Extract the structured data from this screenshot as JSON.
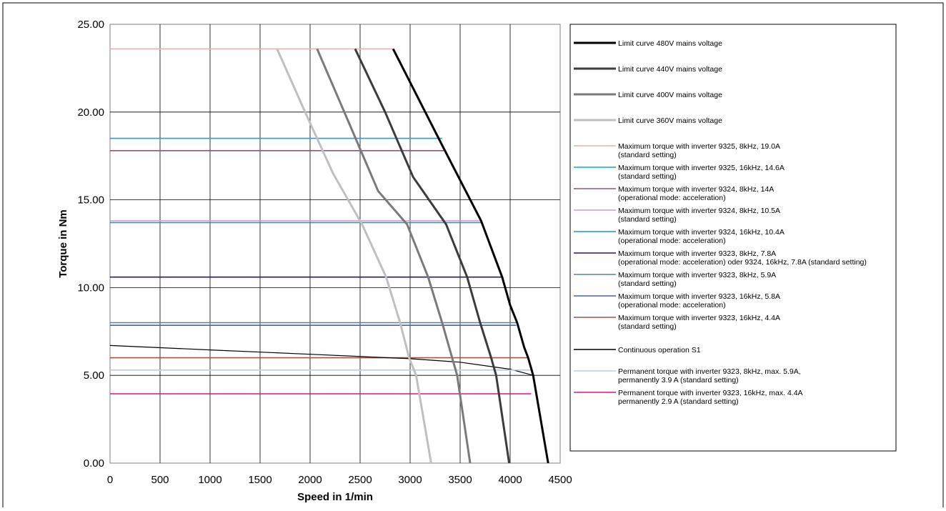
{
  "chart_data": {
    "type": "line",
    "xlabel": "Speed in 1/min",
    "ylabel": "Torque in Nm",
    "xlim": [
      0,
      4500
    ],
    "ylim": [
      0,
      25
    ],
    "x_ticks": [
      "0",
      "500",
      "1000",
      "1500",
      "2000",
      "2500",
      "3000",
      "3500",
      "4000",
      "4500"
    ],
    "y_ticks": [
      "0.00",
      "5.00",
      "10.00",
      "15.00",
      "20.00",
      "25.00"
    ],
    "grid": true,
    "legend_position": "right",
    "series": [
      {
        "name": "Limit curve  480V mains voltage",
        "lines": [
          "Limit curve  480V mains voltage"
        ],
        "color": "#000000",
        "width": 3,
        "points": [
          [
            2830,
            23.6
          ],
          [
            3330,
            18.0
          ],
          [
            3710,
            13.8
          ],
          [
            3920,
            10.6
          ],
          [
            4000,
            9.0
          ],
          [
            4070,
            8.0
          ],
          [
            4140,
            6.6
          ],
          [
            4180,
            6.0
          ],
          [
            4230,
            5.0
          ],
          [
            4380,
            0.0
          ]
        ]
      },
      {
        "name": "Limit curve  440V mains voltage",
        "lines": [
          "Limit curve  440V mains voltage"
        ],
        "color": "#3c3c3c",
        "width": 3,
        "points": [
          [
            2450,
            23.6
          ],
          [
            2750,
            20.0
          ],
          [
            3030,
            16.3
          ],
          [
            3360,
            13.6
          ],
          [
            3570,
            10.6
          ],
          [
            3700,
            8.0
          ],
          [
            3810,
            6.0
          ],
          [
            3860,
            5.0
          ],
          [
            3990,
            0.0
          ]
        ]
      },
      {
        "name": "Limit curve 400V mains voltage",
        "lines": [
          "Limit curve 400V mains voltage"
        ],
        "color": "#7a7a7a",
        "width": 3,
        "points": [
          [
            2070,
            23.6
          ],
          [
            2380,
            19.5
          ],
          [
            2680,
            15.5
          ],
          [
            2970,
            13.6
          ],
          [
            3180,
            10.6
          ],
          [
            3320,
            8.0
          ],
          [
            3420,
            6.0
          ],
          [
            3470,
            5.0
          ],
          [
            3600,
            0.0
          ]
        ]
      },
      {
        "name": "Limit curve 360V mains voltage",
        "lines": [
          "Limit curve 360V mains voltage"
        ],
        "color": "#c0c0c0",
        "width": 3,
        "points": [
          [
            1670,
            23.6
          ],
          [
            1950,
            20.0
          ],
          [
            2230,
            16.5
          ],
          [
            2520,
            13.6
          ],
          [
            2760,
            10.6
          ],
          [
            2900,
            8.0
          ],
          [
            2990,
            6.0
          ],
          [
            3060,
            5.0
          ],
          [
            3210,
            0.0
          ]
        ]
      },
      {
        "name": "Maximum torque with inverter 9325, 8kHz, 19.0A (standard setting)",
        "lines": [
          "Maximum torque with inverter 9325, 8kHz, 19.0A",
          "(standard setting)"
        ],
        "color": "#e0b4b4",
        "width": 1.6,
        "points": [
          [
            0,
            23.6
          ],
          [
            2830,
            23.6
          ]
        ]
      },
      {
        "name": "Maximum torque with inverter 9325, 16kHz, 14.6A (standard setting)",
        "lines": [
          "Maximum torque with inverter 9325, 16kHz, 14.6A",
          "(standard setting)"
        ],
        "color": "#14a5e0",
        "width": 1.6,
        "points": [
          [
            0,
            18.5
          ],
          [
            3320,
            18.5
          ]
        ]
      },
      {
        "name": "Maximum torque with inverter 9324, 8kHz, 14A (operational mode: acceleration)",
        "lines": [
          "Maximum torque with inverter 9324, 8kHz, 14A",
          "(operational mode: acceleration)"
        ],
        "color": "#8c5a78",
        "width": 1.6,
        "points": [
          [
            0,
            17.8
          ],
          [
            3360,
            17.8
          ]
        ]
      },
      {
        "name": "Maximum torque with inverter 9324, 8kHz, 10.5A (standard setting)",
        "lines": [
          "Maximum torque with inverter 9324, 8kHz, 10.5A",
          "(standard setting)"
        ],
        "color": "#c8a0c8",
        "width": 1.6,
        "points": [
          [
            0,
            13.8
          ],
          [
            3700,
            13.8
          ]
        ]
      },
      {
        "name": "Maximum torque with inverter 9324, 16kHz, 10.4A (operational mode: acceleration)",
        "lines": [
          "Maximum torque with inverter 9324, 16kHz, 10.4A",
          "(operational mode: acceleration)"
        ],
        "color": "#1e96c8",
        "width": 1.6,
        "points": [
          [
            0,
            13.7
          ],
          [
            3710,
            13.7
          ]
        ]
      },
      {
        "name": "Maximum torque with inverter 9323, 8kHz, 7.8A (operational mode: acceleration) oder 9324, 16kHz, 7.8A (standard setting)",
        "lines": [
          "Maximum torque with inverter 9323, 8kHz, 7.8A",
          "(operational mode: acceleration) oder 9324, 16kHz, 7.8A (standard setting)"
        ],
        "color": "#32146e",
        "width": 1.6,
        "points": [
          [
            0,
            10.6
          ],
          [
            3920,
            10.6
          ]
        ]
      },
      {
        "name": "Maximum torque with inverter 9323, 8kHz, 5.9A (standard setting)",
        "lines": [
          "Maximum torque with inverter 9323, 8kHz, 5.9A",
          "(standard setting)"
        ],
        "color": "#5a8296",
        "width": 1.6,
        "points": [
          [
            0,
            8.0
          ],
          [
            4070,
            8.0
          ]
        ]
      },
      {
        "name": "Maximum torque with inverter 9323, 16kHz, 5.8A (operational mode: acceleration)",
        "lines": [
          "Maximum torque with inverter 9323, 16kHz, 5.8A",
          "(operational mode: acceleration)"
        ],
        "color": "#4664b4",
        "width": 1.6,
        "points": [
          [
            0,
            7.85
          ],
          [
            4060,
            7.85
          ]
        ]
      },
      {
        "name": "Maximum torque with inverter 9323, 16kHz, 4.4A (standard setting)",
        "lines": [
          "Maximum torque with inverter 9323, 16kHz, 4.4A",
          "(standard setting)"
        ],
        "color": "#965a46",
        "width": 1.6,
        "points": [
          [
            0,
            6.0
          ],
          [
            4180,
            6.0
          ]
        ]
      },
      {
        "name": "Continuous operation S1",
        "lines": [
          "Continuous operation S1"
        ],
        "color": "#000000",
        "width": 1.2,
        "points": [
          [
            0,
            6.7
          ],
          [
            1000,
            6.45
          ],
          [
            2000,
            6.2
          ],
          [
            3000,
            5.95
          ],
          [
            3500,
            5.75
          ],
          [
            4000,
            5.35
          ],
          [
            4230,
            5.0
          ]
        ]
      },
      {
        "name": "Permanent torque with inverter 9323, 8kHz, max. 5.9A, permanently 3.9 A (standard setting)",
        "lines": [
          "Permanent torque with inverter 9323, 8kHz, max. 5.9A,",
          "permanently 3.9 A (standard setting)"
        ],
        "color": "#b9cde1",
        "width": 1.6,
        "points": [
          [
            0,
            5.3
          ],
          [
            4230,
            5.3
          ]
        ]
      },
      {
        "name": "Permanent torque with inverter 9323, 16kHz, max. 4.4A permanently 2.9 A (standard setting)",
        "lines": [
          "Permanent torque with inverter 9323, 16kHz, max. 4.4A",
          "permanently 2.9 A (standard setting)"
        ],
        "color": "#e6147d",
        "width": 1.6,
        "points": [
          [
            0,
            3.95
          ],
          [
            4210,
            3.95
          ]
        ]
      }
    ]
  }
}
